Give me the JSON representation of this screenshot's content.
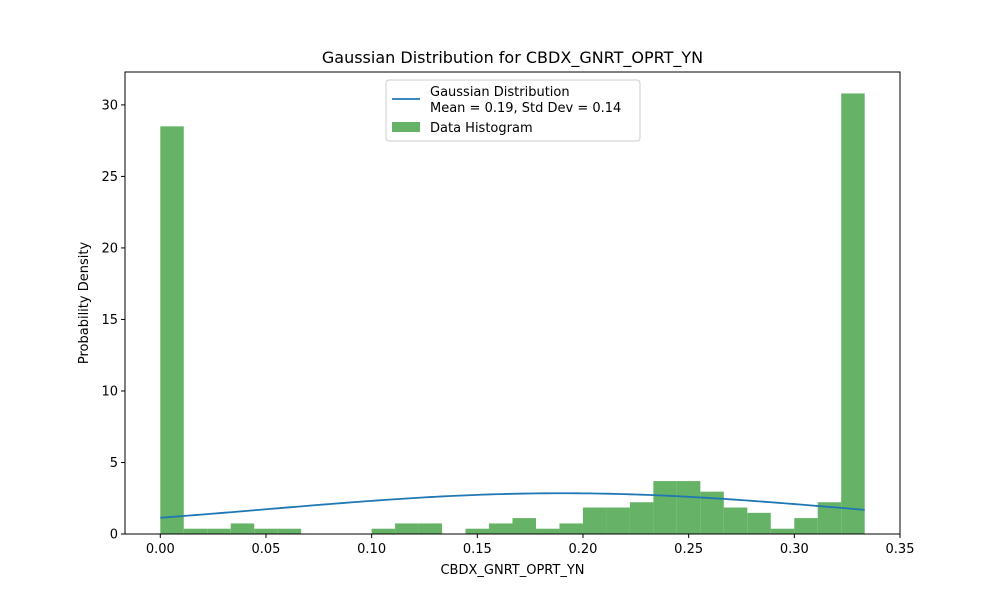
{
  "chart_data": {
    "type": "bar",
    "title": "Gaussian Distribution for CBDX_GNRT_OPRT_YN",
    "xlabel": "CBDX_GNRT_OPRT_YN",
    "ylabel": "Probability Density",
    "xlim": [
      -0.0167,
      0.35
    ],
    "ylim": [
      0,
      32.3
    ],
    "x_ticks": [
      0.0,
      0.05,
      0.1,
      0.15,
      0.2,
      0.25,
      0.3,
      0.35
    ],
    "x_tick_labels": [
      "0.00",
      "0.05",
      "0.10",
      "0.15",
      "0.20",
      "0.25",
      "0.30",
      "0.35"
    ],
    "y_ticks": [
      0,
      5,
      10,
      15,
      20,
      25,
      30
    ],
    "y_tick_labels": [
      "0",
      "5",
      "10",
      "15",
      "20",
      "25",
      "30"
    ],
    "grid": false,
    "legend_position": "top-center",
    "series": [
      {
        "name": "Data Histogram",
        "type": "histogram",
        "color": "#66b266",
        "bin_start": 0.0,
        "bin_width": 0.01111,
        "values": [
          28.5,
          0.37,
          0.37,
          0.74,
          0.37,
          0.37,
          0,
          0,
          0,
          0.37,
          0.74,
          0.74,
          0,
          0.37,
          0.74,
          1.11,
          0.37,
          0.74,
          1.85,
          1.85,
          2.22,
          3.7,
          3.7,
          2.96,
          1.85,
          1.48,
          0.37,
          1.11,
          2.22,
          30.8
        ]
      },
      {
        "name": "Gaussian Distribution\nMean = 0.19, Std Dev = 0.14",
        "type": "line",
        "color": "#1f77b4",
        "mean": 0.19,
        "std": 0.14,
        "x_range": [
          0.0,
          0.3333
        ]
      }
    ]
  }
}
